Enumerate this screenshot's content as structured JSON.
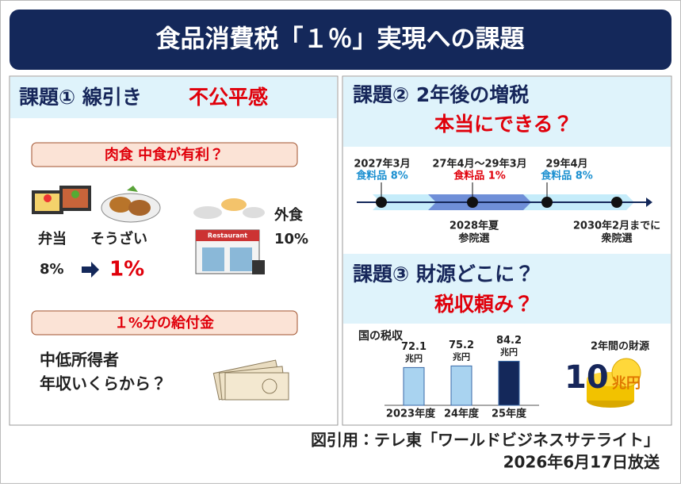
{
  "title": "食品消費税「１％」実現への課題",
  "issue1": {
    "heading": "課題① 線引き",
    "highlight": "不公平感",
    "box1": "肉食 中食が有利？",
    "bento": "弁当",
    "souzai": "そうざい",
    "takeout_rate": "8%",
    "new_rate": "1%",
    "sign": "Restaurant",
    "dining_out": "外食",
    "dining_out_rate": "10%",
    "box2": "１%分の給付金",
    "question_line1": "中低所得者",
    "question_line2": "年収いくらから？"
  },
  "issue2": {
    "heading": "課題② 2年後の増税",
    "highlight": "本当にできる？",
    "timeline_top": [
      {
        "date": "2027年3月",
        "rate": "食料品 8%"
      },
      {
        "date": "27年4月～29年3月",
        "rate": "食料品 1%"
      },
      {
        "date": "29年4月",
        "rate": "食料品 8%"
      }
    ],
    "timeline_bottom": [
      {
        "date": "2028年夏",
        "event": "参院選"
      },
      {
        "date": "2030年2月までに",
        "event": "衆院選"
      }
    ]
  },
  "issue3": {
    "heading": "課題③ 財源どこに？",
    "highlight": "税収頼み？",
    "tax_revenue": {
      "title": "国の税収",
      "unit": "兆円",
      "categories": [
        "2023年度",
        "24年度",
        "25年度"
      ],
      "values": [
        72.1,
        75.2,
        84.2
      ]
    },
    "funding_label": "2年間の財源",
    "funding_value": "10",
    "funding_unit": "兆円"
  },
  "footer": {
    "source": "図引用：テレ東「ワールドビジネスサテライト」",
    "broadcast": "2026年6月17日放送"
  }
}
